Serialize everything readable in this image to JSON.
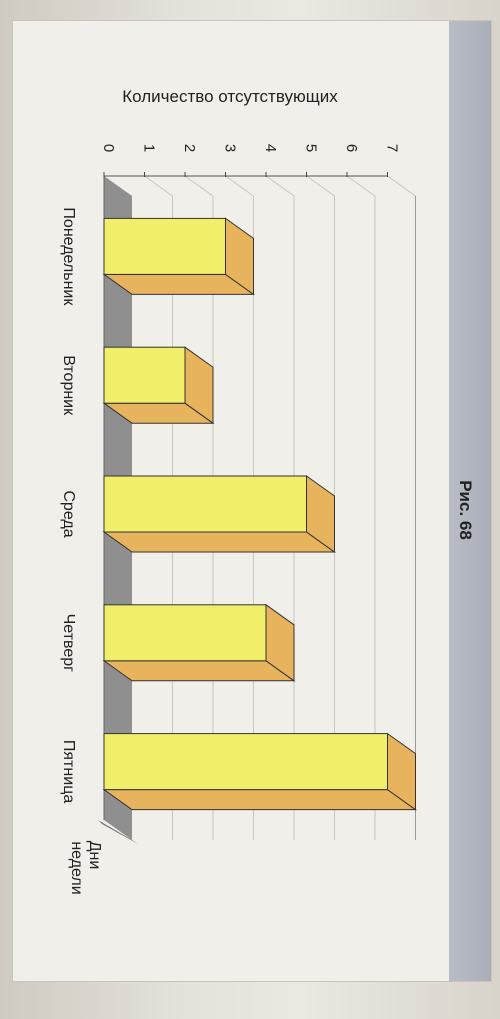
{
  "figure_label": "Рис. 68",
  "chart_data": {
    "type": "bar",
    "categories": [
      "Понедельник",
      "Вторник",
      "Среда",
      "Четверг",
      "Пятница"
    ],
    "values": [
      3,
      2,
      5,
      4,
      7
    ],
    "ylabel": "Количество отсутствующих",
    "xlabel_lines": [
      "Дни",
      "недели"
    ],
    "yticks": [
      0,
      1,
      2,
      3,
      4,
      5,
      6,
      7
    ],
    "ylim": [
      0,
      7
    ],
    "grid": true,
    "orientation": "rotated-90",
    "colors": {
      "bar_front": "#f1ef6a",
      "bar_side": "#e7b35c",
      "floor": "#8f8f8f",
      "grid": "#c8c6c0"
    }
  }
}
